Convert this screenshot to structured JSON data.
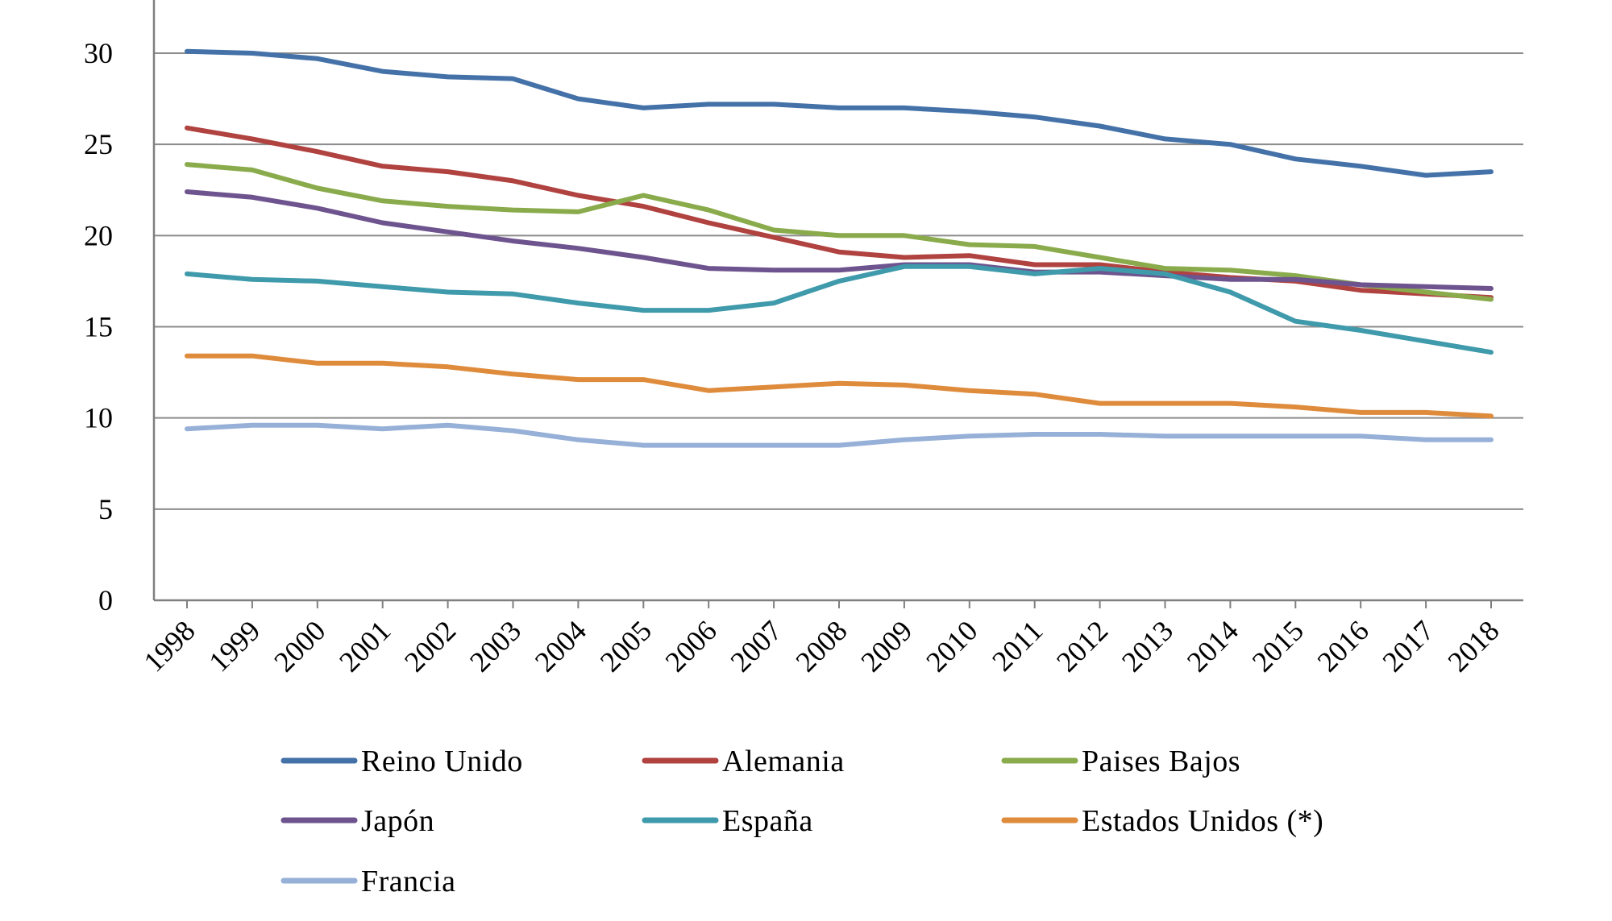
{
  "chart_data": {
    "type": "line",
    "title": "",
    "xlabel": "",
    "ylabel": "",
    "x": [
      "1998",
      "1999",
      "2000",
      "2001",
      "2002",
      "2003",
      "2004",
      "2005",
      "2006",
      "2007",
      "2008",
      "2009",
      "2010",
      "2011",
      "2012",
      "2013",
      "2014",
      "2015",
      "2016",
      "2017",
      "2018"
    ],
    "ylim": [
      0,
      30
    ],
    "yticks": [
      0,
      5,
      10,
      15,
      20,
      25,
      30
    ],
    "grid": true,
    "legend_position": "bottom",
    "series": [
      {
        "name": "Reino Unido",
        "color": "#4472a8",
        "values": [
          30.1,
          30.0,
          29.7,
          29.0,
          28.7,
          28.6,
          27.5,
          27.0,
          27.2,
          27.2,
          27.0,
          27.0,
          26.8,
          26.5,
          26.0,
          25.3,
          25.0,
          24.2,
          23.8,
          23.3,
          23.5
        ]
      },
      {
        "name": "Alemania",
        "color": "#b04240",
        "values": [
          25.9,
          25.3,
          24.6,
          23.8,
          23.5,
          23.0,
          22.2,
          21.6,
          20.7,
          19.9,
          19.1,
          18.8,
          18.9,
          18.4,
          18.4,
          18.0,
          17.7,
          17.5,
          17.0,
          16.8,
          16.6
        ]
      },
      {
        "name": "Paises Bajos",
        "color": "#8aab4c",
        "values": [
          23.9,
          23.6,
          22.6,
          21.9,
          21.6,
          21.4,
          21.3,
          22.2,
          21.4,
          20.3,
          20.0,
          20.0,
          19.5,
          19.4,
          18.8,
          18.2,
          18.1,
          17.8,
          17.3,
          16.9,
          16.5
        ]
      },
      {
        "name": "Japón",
        "color": "#6e548e",
        "values": [
          22.4,
          22.1,
          21.5,
          20.7,
          20.2,
          19.7,
          19.3,
          18.8,
          18.2,
          18.1,
          18.1,
          18.4,
          18.4,
          18.0,
          18.0,
          17.8,
          17.6,
          17.6,
          17.3,
          17.2,
          17.1
        ]
      },
      {
        "name": "España",
        "color": "#3f9aab",
        "values": [
          17.9,
          17.6,
          17.5,
          17.2,
          16.9,
          16.8,
          16.3,
          15.9,
          15.9,
          16.3,
          17.5,
          18.3,
          18.3,
          17.9,
          18.2,
          17.9,
          16.9,
          15.3,
          14.8,
          14.2,
          13.6
        ]
      },
      {
        "name": "Estados Unidos (*)",
        "color": "#df8b3c",
        "values": [
          13.4,
          13.4,
          13.0,
          13.0,
          12.8,
          12.4,
          12.1,
          12.1,
          11.5,
          11.7,
          11.9,
          11.8,
          11.5,
          11.3,
          10.8,
          10.8,
          10.8,
          10.6,
          10.3,
          10.3,
          10.1
        ]
      },
      {
        "name": "Francia",
        "color": "#96b0d8",
        "values": [
          9.4,
          9.6,
          9.6,
          9.4,
          9.6,
          9.3,
          8.8,
          8.5,
          8.5,
          8.5,
          8.5,
          8.8,
          9.0,
          9.1,
          9.1,
          9.0,
          9.0,
          9.0,
          9.0,
          8.8,
          8.8
        ]
      }
    ]
  }
}
